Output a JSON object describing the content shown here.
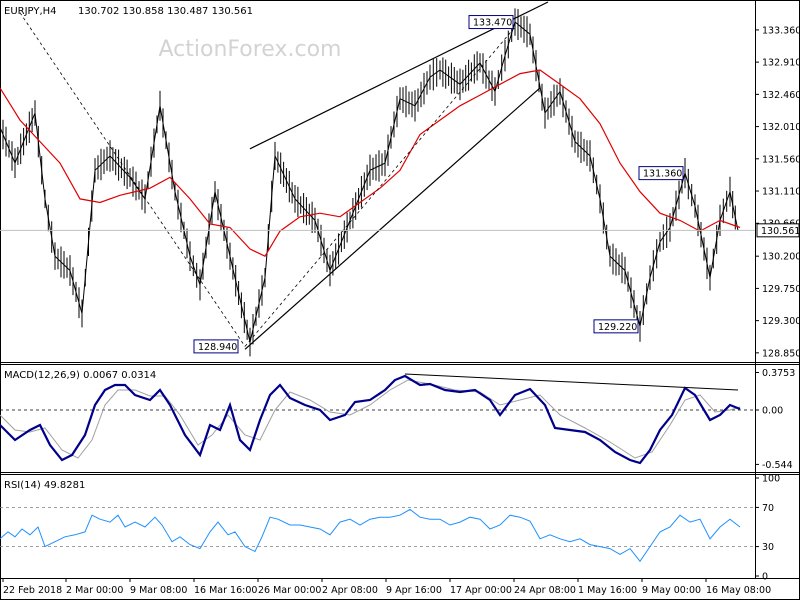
{
  "chart_data": {
    "type": "ohlc",
    "symbol_header": "EURJPY,H4",
    "ohlc_header": "130.702 130.858 130.487 130.561",
    "watermark": "ActionForex.com",
    "current_price": "130.561",
    "price_axis": {
      "range": [
        128.75,
        133.75
      ],
      "ticks": [
        "133.360",
        "132.910",
        "132.460",
        "132.010",
        "131.560",
        "131.110",
        "130.660",
        "130.200",
        "129.750",
        "129.300",
        "128.850"
      ]
    },
    "x_labels": [
      "22 Feb 2018",
      "2 Mar 00:00",
      "9 Mar 08:00",
      "16 Mar 16:00",
      "26 Mar 00:00",
      "2 Apr 08:00",
      "9 Apr 16:00",
      "17 Apr 00:00",
      "24 Apr 08:00",
      "1 May 16:00",
      "9 May 00:00",
      "16 May 08:00"
    ],
    "price_points": [
      [
        0,
        132.0
      ],
      [
        15,
        131.5
      ],
      [
        35,
        132.2
      ],
      [
        45,
        131.0
      ],
      [
        55,
        130.2
      ],
      [
        70,
        130.0
      ],
      [
        82,
        129.4
      ],
      [
        95,
        131.4
      ],
      [
        110,
        131.6
      ],
      [
        130,
        131.3
      ],
      [
        145,
        131.0
      ],
      [
        160,
        132.3
      ],
      [
        175,
        131.1
      ],
      [
        190,
        130.2
      ],
      [
        200,
        129.8
      ],
      [
        215,
        131.1
      ],
      [
        230,
        130.2
      ],
      [
        250,
        129.0
      ],
      [
        265,
        129.9
      ],
      [
        275,
        131.6
      ],
      [
        295,
        131.0
      ],
      [
        315,
        130.7
      ],
      [
        330,
        130.0
      ],
      [
        350,
        130.7
      ],
      [
        370,
        131.4
      ],
      [
        385,
        131.5
      ],
      [
        400,
        132.4
      ],
      [
        415,
        132.3
      ],
      [
        430,
        132.7
      ],
      [
        440,
        132.8
      ],
      [
        460,
        132.6
      ],
      [
        480,
        132.9
      ],
      [
        495,
        132.5
      ],
      [
        505,
        133.0
      ],
      [
        515,
        133.47
      ],
      [
        530,
        133.3
      ],
      [
        545,
        132.2
      ],
      [
        560,
        132.5
      ],
      [
        575,
        131.8
      ],
      [
        590,
        131.6
      ],
      [
        600,
        131.0
      ],
      [
        610,
        130.2
      ],
      [
        625,
        130.0
      ],
      [
        640,
        129.22
      ],
      [
        650,
        129.9
      ],
      [
        660,
        130.4
      ],
      [
        670,
        130.6
      ],
      [
        685,
        131.36
      ],
      [
        695,
        130.9
      ],
      [
        710,
        129.9
      ],
      [
        720,
        130.7
      ],
      [
        730,
        131.1
      ],
      [
        738,
        130.56
      ]
    ],
    "moving_average": [
      [
        0,
        132.55
      ],
      [
        20,
        132.1
      ],
      [
        40,
        131.8
      ],
      [
        60,
        131.5
      ],
      [
        80,
        131.0
      ],
      [
        100,
        130.95
      ],
      [
        120,
        131.05
      ],
      [
        150,
        131.15
      ],
      [
        170,
        131.3
      ],
      [
        190,
        131.0
      ],
      [
        210,
        130.65
      ],
      [
        230,
        130.6
      ],
      [
        250,
        130.3
      ],
      [
        265,
        130.2
      ],
      [
        280,
        130.55
      ],
      [
        300,
        130.75
      ],
      [
        320,
        130.8
      ],
      [
        340,
        130.75
      ],
      [
        360,
        130.95
      ],
      [
        380,
        131.15
      ],
      [
        400,
        131.4
      ],
      [
        420,
        131.9
      ],
      [
        440,
        132.1
      ],
      [
        460,
        132.3
      ],
      [
        480,
        132.45
      ],
      [
        500,
        132.6
      ],
      [
        520,
        132.75
      ],
      [
        540,
        132.8
      ],
      [
        560,
        132.6
      ],
      [
        580,
        132.4
      ],
      [
        600,
        132.05
      ],
      [
        620,
        131.5
      ],
      [
        640,
        131.1
      ],
      [
        660,
        130.8
      ],
      [
        680,
        130.7
      ],
      [
        700,
        130.55
      ],
      [
        720,
        130.7
      ],
      [
        740,
        130.6
      ]
    ],
    "trendlines": [
      {
        "from": [
          250,
          131.7
        ],
        "to": [
          548,
          133.75
        ]
      },
      {
        "from": [
          245,
          128.9
        ],
        "to": [
          540,
          132.55
        ]
      },
      {
        "from": [
          20,
          133.6
        ],
        "to": [
          245,
          128.94
        ]
      },
      {
        "from": [
          245,
          128.94
        ],
        "to": [
          515,
          133.4
        ]
      }
    ],
    "price_callouts": [
      {
        "text": "133.470",
        "at": [
          515,
          133.47
        ],
        "side": "left"
      },
      {
        "text": "131.360",
        "at": [
          685,
          131.36
        ],
        "side": "left"
      },
      {
        "text": "129.220",
        "at": [
          640,
          129.22
        ],
        "side": "left"
      },
      {
        "text": "128.940",
        "at": [
          240,
          128.94
        ],
        "side": "left"
      }
    ],
    "macd": {
      "label": "MACD(12,26,9) 0.0067 0.0314",
      "range": [
        -0.6,
        0.42
      ],
      "ticks": [
        "0.3753",
        "0.00",
        "-0.544"
      ],
      "main": [
        [
          0,
          -0.15
        ],
        [
          15,
          -0.3
        ],
        [
          30,
          -0.2
        ],
        [
          40,
          -0.15
        ],
        [
          50,
          -0.35
        ],
        [
          62,
          -0.5
        ],
        [
          72,
          -0.45
        ],
        [
          85,
          -0.25
        ],
        [
          95,
          0.05
        ],
        [
          105,
          0.2
        ],
        [
          115,
          0.25
        ],
        [
          125,
          0.25
        ],
        [
          135,
          0.15
        ],
        [
          150,
          0.1
        ],
        [
          160,
          0.2
        ],
        [
          170,
          0.05
        ],
        [
          185,
          -0.25
        ],
        [
          200,
          -0.45
        ],
        [
          210,
          -0.15
        ],
        [
          220,
          -0.2
        ],
        [
          230,
          0.05
        ],
        [
          240,
          -0.3
        ],
        [
          250,
          -0.4
        ],
        [
          260,
          -0.1
        ],
        [
          270,
          0.15
        ],
        [
          280,
          0.25
        ],
        [
          290,
          0.12
        ],
        [
          305,
          0.05
        ],
        [
          320,
          0.0
        ],
        [
          330,
          -0.1
        ],
        [
          345,
          -0.05
        ],
        [
          355,
          0.08
        ],
        [
          370,
          0.1
        ],
        [
          385,
          0.2
        ],
        [
          395,
          0.3
        ],
        [
          405,
          0.34
        ],
        [
          420,
          0.25
        ],
        [
          430,
          0.26
        ],
        [
          445,
          0.2
        ],
        [
          460,
          0.18
        ],
        [
          475,
          0.2
        ],
        [
          490,
          0.1
        ],
        [
          500,
          -0.05
        ],
        [
          515,
          0.15
        ],
        [
          530,
          0.21
        ],
        [
          545,
          0.05
        ],
        [
          555,
          -0.18
        ],
        [
          570,
          -0.2
        ],
        [
          585,
          -0.22
        ],
        [
          600,
          -0.3
        ],
        [
          615,
          -0.42
        ],
        [
          630,
          -0.5
        ],
        [
          640,
          -0.53
        ],
        [
          650,
          -0.4
        ],
        [
          660,
          -0.2
        ],
        [
          672,
          -0.05
        ],
        [
          685,
          0.22
        ],
        [
          695,
          0.15
        ],
        [
          710,
          -0.1
        ],
        [
          720,
          -0.05
        ],
        [
          730,
          0.05
        ],
        [
          740,
          0.01
        ]
      ],
      "signal": [
        [
          0,
          -0.05
        ],
        [
          15,
          -0.2
        ],
        [
          30,
          -0.22
        ],
        [
          45,
          -0.18
        ],
        [
          62,
          -0.4
        ],
        [
          78,
          -0.48
        ],
        [
          92,
          -0.3
        ],
        [
          105,
          0.05
        ],
        [
          118,
          0.2
        ],
        [
          135,
          0.2
        ],
        [
          150,
          0.14
        ],
        [
          165,
          0.14
        ],
        [
          180,
          -0.05
        ],
        [
          198,
          -0.35
        ],
        [
          212,
          -0.25
        ],
        [
          228,
          -0.05
        ],
        [
          245,
          -0.25
        ],
        [
          260,
          -0.3
        ],
        [
          275,
          0.0
        ],
        [
          290,
          0.18
        ],
        [
          310,
          0.1
        ],
        [
          330,
          -0.02
        ],
        [
          350,
          -0.05
        ],
        [
          370,
          0.05
        ],
        [
          390,
          0.2
        ],
        [
          408,
          0.3
        ],
        [
          430,
          0.26
        ],
        [
          455,
          0.2
        ],
        [
          480,
          0.18
        ],
        [
          500,
          0.05
        ],
        [
          520,
          0.1
        ],
        [
          540,
          0.15
        ],
        [
          560,
          -0.05
        ],
        [
          585,
          -0.18
        ],
        [
          610,
          -0.32
        ],
        [
          635,
          -0.48
        ],
        [
          652,
          -0.42
        ],
        [
          670,
          -0.15
        ],
        [
          685,
          0.1
        ],
        [
          700,
          0.15
        ],
        [
          715,
          -0.02
        ],
        [
          730,
          0.0
        ],
        [
          740,
          0.03
        ]
      ],
      "trendline": {
        "from": [
          405,
          0.36
        ],
        "to": [
          738,
          0.2
        ]
      }
    },
    "rsi": {
      "label": "RSI(14) 49.8281",
      "range": [
        0,
        100
      ],
      "ticks": [
        "100",
        "70",
        "30",
        "0"
      ],
      "levels": [
        70,
        30
      ],
      "values": [
        [
          0,
          38
        ],
        [
          8,
          45
        ],
        [
          15,
          40
        ],
        [
          22,
          48
        ],
        [
          30,
          42
        ],
        [
          38,
          50
        ],
        [
          45,
          30
        ],
        [
          55,
          35
        ],
        [
          65,
          40
        ],
        [
          75,
          42
        ],
        [
          85,
          45
        ],
        [
          92,
          62
        ],
        [
          100,
          58
        ],
        [
          110,
          55
        ],
        [
          118,
          62
        ],
        [
          125,
          50
        ],
        [
          135,
          55
        ],
        [
          145,
          50
        ],
        [
          155,
          60
        ],
        [
          162,
          52
        ],
        [
          172,
          35
        ],
        [
          180,
          40
        ],
        [
          190,
          32
        ],
        [
          200,
          28
        ],
        [
          210,
          45
        ],
        [
          218,
          55
        ],
        [
          228,
          42
        ],
        [
          235,
          45
        ],
        [
          245,
          30
        ],
        [
          255,
          25
        ],
        [
          262,
          40
        ],
        [
          270,
          60
        ],
        [
          278,
          58
        ],
        [
          290,
          52
        ],
        [
          300,
          52
        ],
        [
          310,
          50
        ],
        [
          320,
          48
        ],
        [
          330,
          42
        ],
        [
          340,
          55
        ],
        [
          350,
          58
        ],
        [
          360,
          52
        ],
        [
          370,
          58
        ],
        [
          380,
          60
        ],
        [
          390,
          60
        ],
        [
          400,
          62
        ],
        [
          410,
          68
        ],
        [
          420,
          60
        ],
        [
          430,
          58
        ],
        [
          440,
          58
        ],
        [
          450,
          52
        ],
        [
          460,
          55
        ],
        [
          470,
          60
        ],
        [
          480,
          58
        ],
        [
          490,
          48
        ],
        [
          500,
          52
        ],
        [
          510,
          62
        ],
        [
          520,
          60
        ],
        [
          530,
          56
        ],
        [
          540,
          38
        ],
        [
          550,
          42
        ],
        [
          560,
          38
        ],
        [
          570,
          35
        ],
        [
          580,
          38
        ],
        [
          590,
          32
        ],
        [
          600,
          30
        ],
        [
          610,
          28
        ],
        [
          620,
          22
        ],
        [
          630,
          28
        ],
        [
          640,
          15
        ],
        [
          650,
          30
        ],
        [
          660,
          45
        ],
        [
          670,
          50
        ],
        [
          680,
          62
        ],
        [
          690,
          55
        ],
        [
          700,
          58
        ],
        [
          710,
          38
        ],
        [
          720,
          50
        ],
        [
          730,
          58
        ],
        [
          740,
          50
        ]
      ]
    }
  }
}
